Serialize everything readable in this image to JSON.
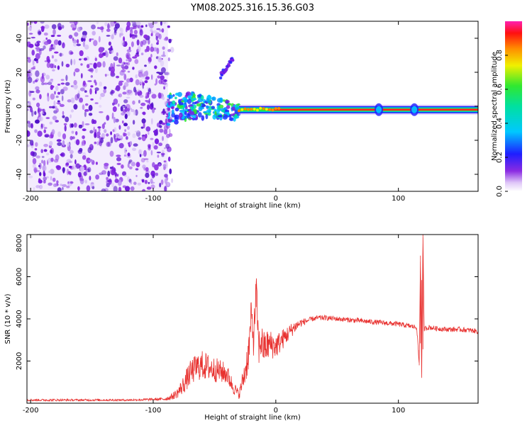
{
  "chart_data": [
    {
      "type": "heatmap",
      "title": "YM08.2025.316.15.36.G03",
      "xlabel": "Height of straight line (km)",
      "ylabel": "Frequency (Hz)",
      "xlim": [
        -203,
        165
      ],
      "ylim": [
        -50,
        50
      ],
      "x_ticks": [
        "-200",
        "-100",
        "0",
        "100"
      ],
      "x_tick_values": [
        -200,
        -100,
        0,
        100
      ],
      "y_ticks": [
        "-40",
        "-20",
        "0",
        "20",
        "40"
      ],
      "y_tick_values": [
        -40,
        -20,
        0,
        20,
        40
      ],
      "colorbar": {
        "label": "Normalized spectral amplitude",
        "range": [
          0,
          1
        ],
        "ticks": [
          "0.0",
          "0.2",
          "0.4",
          "0.6",
          "0.8"
        ],
        "tick_values": [
          0.0,
          0.2,
          0.4,
          0.6,
          0.8
        ]
      },
      "features": [
        {
          "name": "noise-band",
          "x_range": [
            -203,
            -88
          ],
          "freq_range": [
            -50,
            50
          ],
          "amplitude": 0.1
        },
        {
          "name": "onset-blob",
          "x_range": [
            -88,
            -30
          ],
          "freq_range": [
            -12,
            10
          ],
          "amplitude": 0.3
        },
        {
          "name": "harmonic-streak",
          "x_range": [
            -45,
            -35
          ],
          "freq_range": [
            18,
            28
          ],
          "amplitude": 0.15
        },
        {
          "name": "main-tone",
          "x_range": [
            -30,
            165
          ],
          "freq_center": -2,
          "amplitude": 1.0
        },
        {
          "name": "bulge-1",
          "x_center": 84,
          "amplitude": 0.3
        },
        {
          "name": "bulge-2",
          "x_center": 113,
          "amplitude": 0.3
        }
      ]
    },
    {
      "type": "line",
      "xlabel": "Height of straight line (km)",
      "ylabel": "SNR (10 * v/v)",
      "xlim": [
        -203,
        165
      ],
      "ylim": [
        0,
        8000
      ],
      "x_ticks": [
        "-200",
        "-100",
        "0",
        "100"
      ],
      "x_tick_values": [
        -200,
        -100,
        0,
        100
      ],
      "y_ticks": [
        "2000",
        "4000",
        "6000",
        "8000"
      ],
      "y_tick_values": [
        2000,
        4000,
        6000,
        8000
      ],
      "color": "#e8312f",
      "series": [
        {
          "name": "SNR",
          "x": [
            -203,
            -180,
            -160,
            -140,
            -120,
            -100,
            -90,
            -85,
            -80,
            -75,
            -70,
            -65,
            -60,
            -55,
            -50,
            -45,
            -40,
            -35,
            -30,
            -25,
            -22,
            -20,
            -18,
            -16,
            -14,
            -12,
            -10,
            -8,
            -5,
            0,
            5,
            10,
            15,
            20,
            25,
            30,
            35,
            40,
            50,
            60,
            70,
            80,
            90,
            100,
            110,
            115,
            117,
            118,
            119,
            120,
            121,
            122,
            125,
            130,
            140,
            150,
            160,
            165
          ],
          "y": [
            150,
            150,
            150,
            150,
            150,
            180,
            200,
            300,
            500,
            900,
            1400,
            1700,
            1800,
            1700,
            1600,
            1500,
            1400,
            800,
            400,
            1500,
            2500,
            4200,
            3000,
            5600,
            2600,
            3000,
            2600,
            2700,
            2800,
            2700,
            3000,
            3300,
            3600,
            3800,
            3900,
            4000,
            4050,
            4050,
            4000,
            3950,
            3900,
            3850,
            3800,
            3750,
            3650,
            3600,
            1800,
            7000,
            1200,
            8000,
            3500,
            3550,
            3600,
            3550,
            3500,
            3500,
            3450,
            3400
          ],
          "noise": [
            50,
            50,
            50,
            50,
            50,
            60,
            80,
            150,
            250,
            450,
            600,
            650,
            700,
            650,
            600,
            550,
            500,
            350,
            200,
            700,
            900,
            800,
            900,
            700,
            900,
            900,
            800,
            800,
            700,
            600,
            500,
            400,
            300,
            200,
            150,
            120,
            120,
            120,
            120,
            120,
            120,
            120,
            120,
            120,
            120,
            120,
            100,
            100,
            100,
            100,
            100,
            120,
            120,
            120,
            120,
            120,
            120,
            120
          ]
        }
      ]
    }
  ]
}
